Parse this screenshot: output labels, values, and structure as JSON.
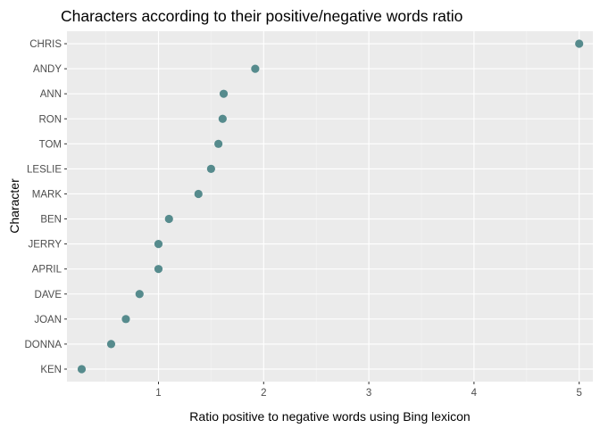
{
  "chart_data": {
    "type": "scatter",
    "title": "Characters according to their positive/negative words ratio",
    "xlabel": "Ratio positive to negative words using Bing lexicon",
    "ylabel": "Character",
    "xlim": [
      0.13,
      5.13
    ],
    "x_ticks": [
      "1",
      "2",
      "3",
      "4",
      "5"
    ],
    "grid": true,
    "legend": "none",
    "point_color": "#568b8d",
    "panel_background": "#ebebeb",
    "points": [
      {
        "character": "CHRIS",
        "ratio": 5.0
      },
      {
        "character": "ANDY",
        "ratio": 1.92
      },
      {
        "character": "ANN",
        "ratio": 1.62
      },
      {
        "character": "RON",
        "ratio": 1.61
      },
      {
        "character": "TOM",
        "ratio": 1.57
      },
      {
        "character": "LESLIE",
        "ratio": 1.5
      },
      {
        "character": "MARK",
        "ratio": 1.38
      },
      {
        "character": "BEN",
        "ratio": 1.1
      },
      {
        "character": "JERRY",
        "ratio": 1.0
      },
      {
        "character": "APRIL",
        "ratio": 1.0
      },
      {
        "character": "DAVE",
        "ratio": 0.82
      },
      {
        "character": "JOAN",
        "ratio": 0.69
      },
      {
        "character": "DONNA",
        "ratio": 0.55
      },
      {
        "character": "KEN",
        "ratio": 0.27
      }
    ]
  }
}
